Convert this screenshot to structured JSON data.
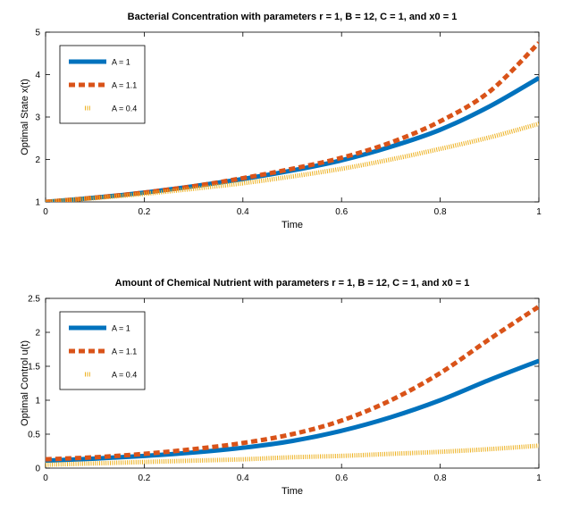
{
  "colors": {
    "blue": "#0072bd",
    "orange": "#d95319",
    "yellow": "#edb120"
  },
  "chart_data": [
    {
      "type": "line",
      "title": "Bacterial Concentration with parameters r = 1, B = 12, C = 1, and x0 = 1",
      "xlabel": "Time",
      "ylabel": "Optimal State x(t)",
      "xlim": [
        0,
        1
      ],
      "ylim": [
        1,
        5
      ],
      "xticks": [
        "0",
        "0.2",
        "0.4",
        "0.6",
        "0.8",
        "1"
      ],
      "yticks": [
        "1",
        "2",
        "3",
        "4",
        "5"
      ],
      "grid": false,
      "legend_position": "top-left",
      "x": [
        0,
        0.1,
        0.2,
        0.3,
        0.4,
        0.5,
        0.6,
        0.7,
        0.8,
        0.9,
        1.0
      ],
      "series": [
        {
          "name": "A = 1",
          "style": "solid",
          "values": [
            1.0,
            1.1,
            1.22,
            1.37,
            1.54,
            1.74,
            1.98,
            2.3,
            2.7,
            3.25,
            3.92
          ]
        },
        {
          "name": "A = 1.1",
          "style": "dashed",
          "values": [
            1.0,
            1.1,
            1.22,
            1.37,
            1.56,
            1.78,
            2.04,
            2.4,
            2.9,
            3.6,
            4.75
          ]
        },
        {
          "name": "A = 0.4",
          "style": "dotted",
          "values": [
            1.0,
            1.09,
            1.19,
            1.31,
            1.44,
            1.6,
            1.78,
            2.0,
            2.25,
            2.52,
            2.84
          ]
        }
      ]
    },
    {
      "type": "line",
      "title": "Amount of Chemical Nutrient with parameters r = 1, B = 12, C = 1, and x0 = 1",
      "xlabel": "Time",
      "ylabel": "Optimal Control u(t)",
      "xlim": [
        0,
        1
      ],
      "ylim": [
        0,
        2.5
      ],
      "xticks": [
        "0",
        "0.2",
        "0.4",
        "0.6",
        "0.8",
        "1"
      ],
      "yticks": [
        "0",
        "0.5",
        "1",
        "1.5",
        "2",
        "2.5"
      ],
      "grid": false,
      "legend_position": "top-left",
      "x": [
        0,
        0.1,
        0.2,
        0.3,
        0.4,
        0.5,
        0.6,
        0.7,
        0.8,
        0.9,
        1.0
      ],
      "series": [
        {
          "name": "A = 1",
          "style": "solid",
          "values": [
            0.11,
            0.14,
            0.18,
            0.23,
            0.3,
            0.4,
            0.55,
            0.75,
            1.0,
            1.3,
            1.58
          ]
        },
        {
          "name": "A = 1.1",
          "style": "dashed",
          "values": [
            0.13,
            0.16,
            0.21,
            0.28,
            0.37,
            0.5,
            0.7,
            1.0,
            1.4,
            1.9,
            2.38
          ]
        },
        {
          "name": "A = 0.4",
          "style": "dotted",
          "values": [
            0.05,
            0.07,
            0.09,
            0.11,
            0.13,
            0.16,
            0.18,
            0.21,
            0.24,
            0.28,
            0.33
          ]
        }
      ]
    }
  ]
}
